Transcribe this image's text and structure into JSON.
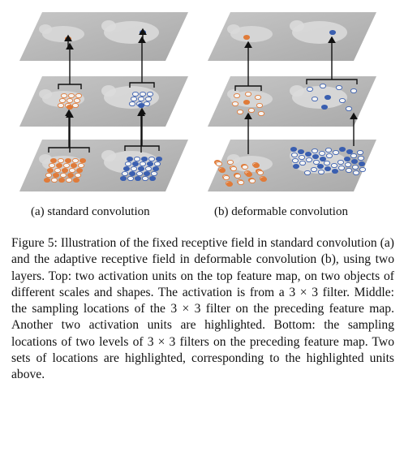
{
  "figure": {
    "panels": [
      {
        "id": "a",
        "label": "(a) standard convolution"
      },
      {
        "id": "b",
        "label": "(b) deformable convolution"
      }
    ],
    "layers": [
      "top",
      "middle",
      "bottom"
    ],
    "colors": {
      "map_fill": "#b9b9b9",
      "orange": "#e07b39",
      "blue": "#3a5fb0",
      "arrow": "#111111"
    }
  },
  "caption": "Figure 5: Illustration of the fixed receptive field in standard convolution (a) and the adaptive receptive field in deformable convolution (b), using two layers. Top: two activation units on the top feature map, on two objects of different scales and shapes. The activation is from a 3 × 3 filter. Middle: the sampling locations of the 3 × 3 filter on the preceding feature map. Another two activation units are highlighted. Bottom: the sampling locations of two levels of 3 × 3 filters on the preceding feature map. Two sets of locations are highlighted, corresponding to the highlighted units above."
}
